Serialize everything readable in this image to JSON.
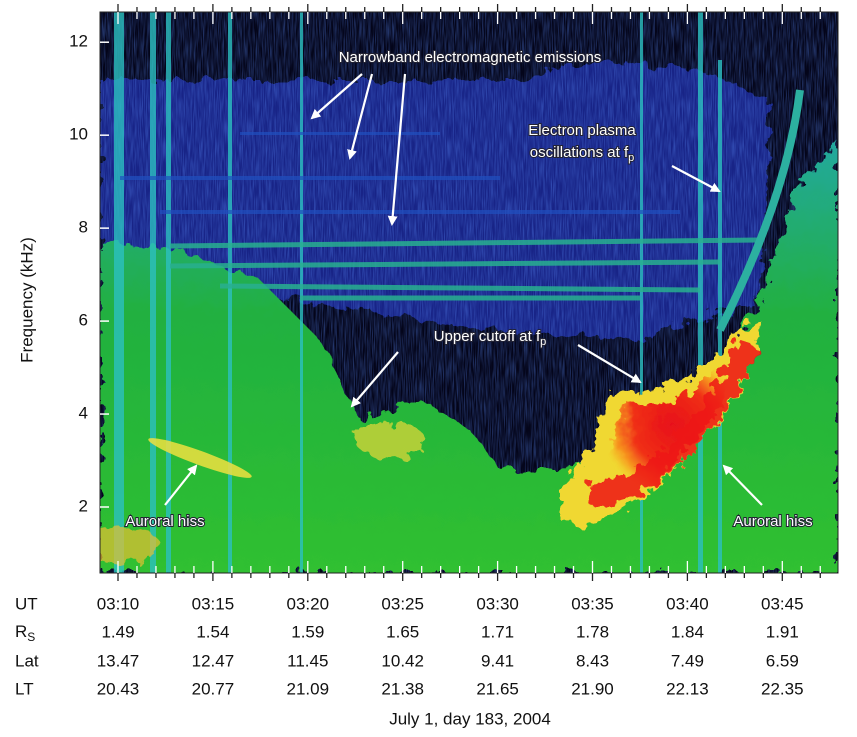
{
  "chart_data": {
    "type": "spectrogram",
    "ylabel": "Frequency (kHz)",
    "ylim": [
      0.58,
      12.65
    ],
    "yticks": [
      2,
      4,
      6,
      8,
      10,
      12
    ],
    "xlabel": "July 1, day 183, 2004",
    "rows": [
      {
        "label": "UT",
        "values": [
          "03:10",
          "03:15",
          "03:20",
          "03:25",
          "03:30",
          "03:35",
          "03:40",
          "03:45"
        ]
      },
      {
        "label": "R",
        "subscript": "S",
        "values": [
          "1.49",
          "1.54",
          "1.59",
          "1.65",
          "1.71",
          "1.78",
          "1.84",
          "1.91"
        ]
      },
      {
        "label": "Lat",
        "values": [
          "13.47",
          "12.47",
          "11.45",
          "10.42",
          "9.41",
          "8.43",
          "7.49",
          "6.59"
        ]
      },
      {
        "label": "LT",
        "values": [
          "20.43",
          "20.77",
          "21.09",
          "21.38",
          "21.65",
          "21.90",
          "22.13",
          "22.35"
        ]
      }
    ],
    "annotations": [
      {
        "text": "Narrowband electromagnetic emissions"
      },
      {
        "text": "Electron plasma"
      },
      {
        "text": "oscillations at f",
        "subscript": "p"
      },
      {
        "text": "Upper cutoff at f",
        "subscript": "p"
      },
      {
        "text": "Auroral hiss"
      },
      {
        "text": "Auroral hiss"
      }
    ]
  }
}
